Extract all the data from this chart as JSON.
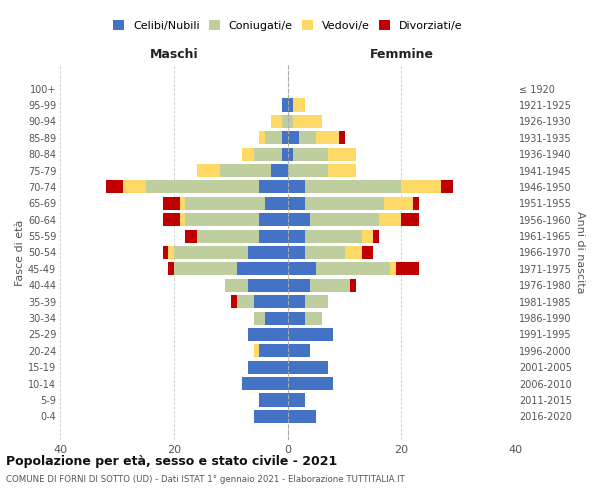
{
  "age_groups": [
    "0-4",
    "5-9",
    "10-14",
    "15-19",
    "20-24",
    "25-29",
    "30-34",
    "35-39",
    "40-44",
    "45-49",
    "50-54",
    "55-59",
    "60-64",
    "65-69",
    "70-74",
    "75-79",
    "80-84",
    "85-89",
    "90-94",
    "95-99",
    "100+"
  ],
  "birth_years": [
    "2016-2020",
    "2011-2015",
    "2006-2010",
    "2001-2005",
    "1996-2000",
    "1991-1995",
    "1986-1990",
    "1981-1985",
    "1976-1980",
    "1971-1975",
    "1966-1970",
    "1961-1965",
    "1956-1960",
    "1951-1955",
    "1946-1950",
    "1941-1945",
    "1936-1940",
    "1931-1935",
    "1926-1930",
    "1921-1925",
    "≤ 1920"
  ],
  "male": {
    "celibi": [
      6,
      5,
      8,
      7,
      5,
      7,
      4,
      6,
      7,
      9,
      7,
      5,
      5,
      4,
      5,
      3,
      1,
      1,
      0,
      1,
      0
    ],
    "coniugati": [
      0,
      0,
      0,
      0,
      0,
      0,
      2,
      3,
      4,
      11,
      13,
      11,
      13,
      14,
      20,
      9,
      5,
      3,
      1,
      0,
      0
    ],
    "vedovi": [
      0,
      0,
      0,
      0,
      1,
      0,
      0,
      0,
      0,
      0,
      1,
      0,
      1,
      1,
      4,
      4,
      2,
      1,
      2,
      0,
      0
    ],
    "divorziati": [
      0,
      0,
      0,
      0,
      0,
      0,
      0,
      1,
      0,
      1,
      1,
      2,
      3,
      3,
      3,
      0,
      0,
      0,
      0,
      0,
      0
    ]
  },
  "female": {
    "nubili": [
      5,
      3,
      8,
      7,
      4,
      8,
      3,
      3,
      4,
      5,
      3,
      3,
      4,
      3,
      3,
      0,
      1,
      2,
      0,
      1,
      0
    ],
    "coniugate": [
      0,
      0,
      0,
      0,
      0,
      0,
      3,
      4,
      7,
      13,
      7,
      10,
      12,
      14,
      17,
      7,
      6,
      3,
      1,
      0,
      0
    ],
    "vedove": [
      0,
      0,
      0,
      0,
      0,
      0,
      0,
      0,
      0,
      1,
      3,
      2,
      4,
      5,
      7,
      5,
      5,
      4,
      5,
      2,
      0
    ],
    "divorziate": [
      0,
      0,
      0,
      0,
      0,
      0,
      0,
      0,
      1,
      4,
      2,
      1,
      3,
      1,
      2,
      0,
      0,
      1,
      0,
      0,
      0
    ]
  },
  "colors": {
    "celibi": "#4472C4",
    "coniugati": "#BFCE9E",
    "vedovi": "#FFD966",
    "divorziati": "#C00000"
  },
  "xlim": 40,
  "title": "Popolazione per età, sesso e stato civile - 2021",
  "subtitle": "COMUNE DI FORNI DI SOTTO (UD) - Dati ISTAT 1° gennaio 2021 - Elaborazione TUTTITALIA.IT",
  "ylabel_left": "Fasce di età",
  "ylabel_right": "Anni di nascita",
  "xlabel_maschi": "Maschi",
  "xlabel_femmine": "Femmine",
  "legend_labels": [
    "Celibi/Nubili",
    "Coniugati/e",
    "Vedovi/e",
    "Divorziati/e"
  ],
  "background_color": "#ffffff"
}
